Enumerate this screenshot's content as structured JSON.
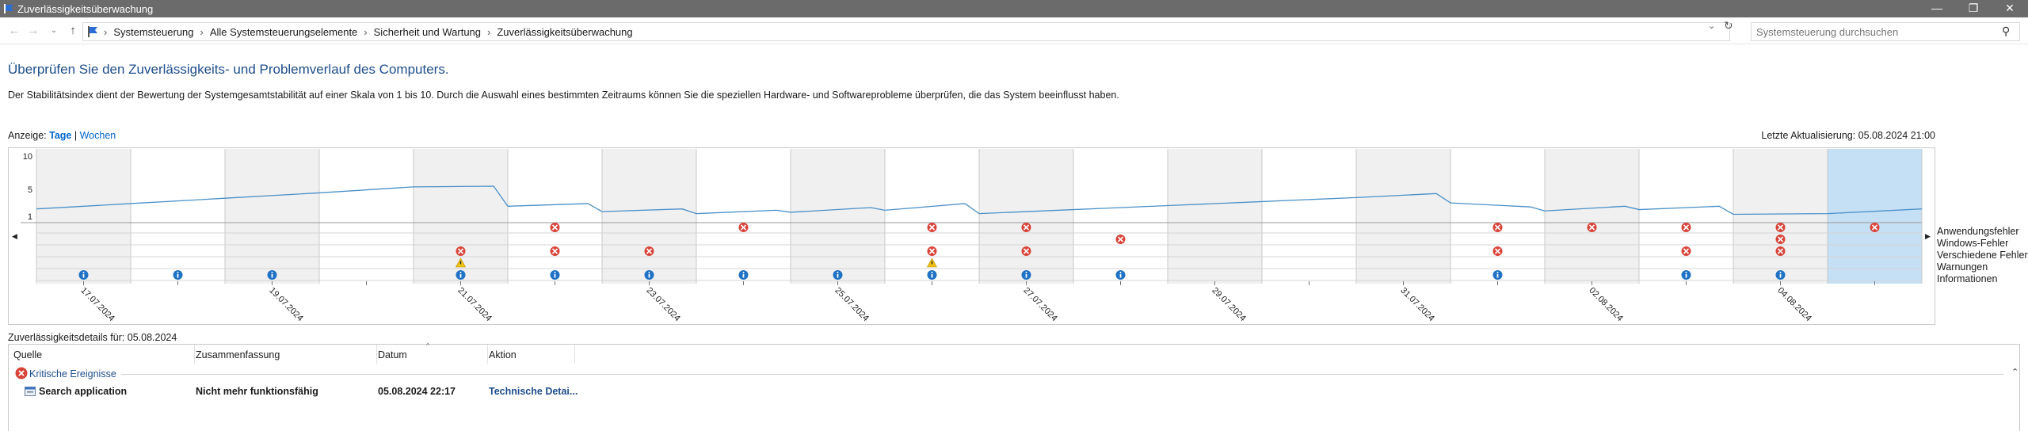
{
  "window": {
    "title": "Zuverlässigkeitsüberwachung",
    "minimize": "—",
    "maximize": "❐",
    "close": "✕"
  },
  "nav": {
    "back": "←",
    "forward": "→",
    "recent": "⌄",
    "up": "↑",
    "breadcrumbs": [
      "Systemsteuerung",
      "Alle Systemsteuerungselemente",
      "Sicherheit und Wartung",
      "Zuverlässigkeitsüberwachung"
    ],
    "dropdown": "⌄",
    "refresh": "↻",
    "search_placeholder": "Systemsteuerung durchsuchen"
  },
  "header": {
    "title": "Überprüfen Sie den Zuverlässigkeits- und Problemverlauf des Computers.",
    "description": "Der Stabilitätsindex dient der Bewertung der Systemgesamtstabilität auf einer Skala von 1 bis 10. Durch die Auswahl eines bestimmten Zeitraums können Sie die speziellen Hardware- und Softwareprobleme überprüfen, die das System beeinflusst haben."
  },
  "view": {
    "label": "Anzeige:",
    "days": "Tage",
    "separator": "|",
    "weeks": "Wochen",
    "last_update": "Letzte Aktualisierung: 05.08.2024 21:00"
  },
  "chart_data": {
    "type": "line",
    "columns": 20,
    "selected_column": 19,
    "y_ticks": [
      10,
      5,
      1
    ],
    "ylim": [
      1,
      10
    ],
    "series": [
      {
        "values": [
          [
            0,
            2.1
          ],
          [
            1,
            2.9
          ],
          [
            2,
            3.7
          ],
          [
            3,
            4.5
          ],
          [
            4,
            5.4
          ],
          [
            4.85,
            5.5
          ],
          [
            5.0,
            2.5
          ],
          [
            5,
            2.5
          ],
          [
            5.85,
            2.9
          ],
          [
            6.0,
            1.7
          ],
          [
            6,
            1.7
          ],
          [
            6.85,
            2.1
          ],
          [
            7.0,
            1.4
          ],
          [
            7,
            1.4
          ],
          [
            7.85,
            1.9
          ],
          [
            8.0,
            1.6
          ],
          [
            8,
            1.6
          ],
          [
            8.85,
            2.3
          ],
          [
            9.0,
            1.9
          ],
          [
            9,
            1.9
          ],
          [
            9.85,
            2.9
          ],
          [
            10.0,
            1.4
          ],
          [
            10,
            1.4
          ],
          [
            11,
            2.0
          ],
          [
            12,
            2.6
          ],
          [
            13,
            3.2
          ],
          [
            14,
            3.8
          ],
          [
            14.85,
            4.4
          ],
          [
            15.0,
            3.0
          ],
          [
            15,
            3.0
          ],
          [
            15.85,
            2.4
          ],
          [
            16.0,
            1.8
          ],
          [
            16,
            1.8
          ],
          [
            16.85,
            2.5
          ],
          [
            17.0,
            2.0
          ],
          [
            17,
            2.0
          ],
          [
            17.85,
            2.5
          ],
          [
            18.0,
            1.3
          ],
          [
            18,
            1.3
          ],
          [
            19,
            1.4
          ],
          [
            20,
            2.1
          ]
        ]
      }
    ],
    "rows": [
      {
        "label": "Anwendungsfehler",
        "kind": "error",
        "columns": [
          5,
          7,
          9,
          10,
          15,
          16,
          17,
          18,
          19
        ]
      },
      {
        "label": "Windows-Fehler",
        "kind": "error",
        "columns": [
          11,
          18
        ]
      },
      {
        "label": "Verschiedene Fehler",
        "kind": "error",
        "columns": [
          4,
          5,
          6,
          9,
          10,
          15,
          17,
          18
        ]
      },
      {
        "label": "Warnungen",
        "kind": "warning",
        "columns": [
          4,
          9
        ]
      },
      {
        "label": "Informationen",
        "kind": "info",
        "columns": [
          0,
          1,
          2,
          4,
          5,
          6,
          7,
          8,
          9,
          10,
          11,
          15,
          17,
          18
        ]
      }
    ],
    "x_labels": [
      {
        "col": 0,
        "text": "17.07.2024"
      },
      {
        "col": 2,
        "text": "19.07.2024"
      },
      {
        "col": 4,
        "text": "21.07.2024"
      },
      {
        "col": 6,
        "text": "23.07.2024"
      },
      {
        "col": 8,
        "text": "25.07.2024"
      },
      {
        "col": 10,
        "text": "27.07.2024"
      },
      {
        "col": 12,
        "text": "29.07.2024"
      },
      {
        "col": 14,
        "text": "31.07.2024"
      },
      {
        "col": 16,
        "text": "02.08.2024"
      },
      {
        "col": 18,
        "text": "04.08.2024"
      }
    ],
    "colors": {
      "line": "#4a90c8",
      "shade": "#f0f0f0",
      "selected": "#c5dff5",
      "error": "#d9443a",
      "warning": "#f3c316",
      "info": "#1f72c4"
    }
  },
  "details": {
    "title": "Zuverlässigkeitsdetails für: 05.08.2024",
    "columns": [
      "Quelle",
      "Zusammenfassung",
      "Datum",
      "Aktion"
    ],
    "sort_indicator": "^",
    "group": "Kritische Ereignisse",
    "collapse": "⌃",
    "events": [
      {
        "source": "Search application",
        "summary": "Nicht mehr funktionsfähig",
        "date": "05.08.2024 22:17",
        "action": "Technische Detai..."
      }
    ]
  }
}
